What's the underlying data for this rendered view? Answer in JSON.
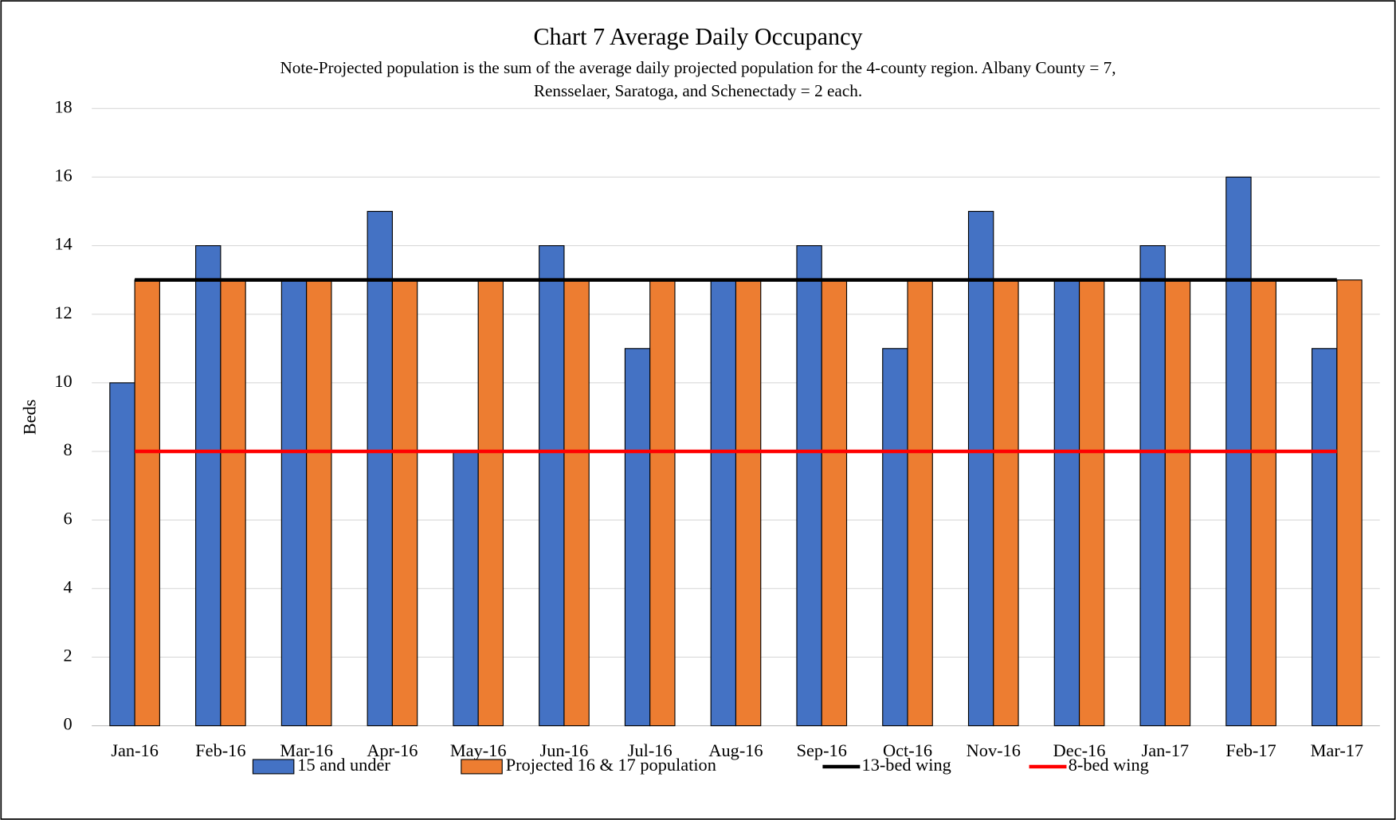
{
  "chart_data": {
    "type": "bar",
    "title": "Chart 7 Average Daily Occupancy",
    "subtitle": [
      "Note-Projected population is the sum of the average daily projected population for the 4-county region. Albany County = 7,",
      "Rensselaer, Saratoga, and Schenectady = 2 each."
    ],
    "ylabel": "Beds",
    "categories": [
      "Jan-16",
      "Feb-16",
      "Mar-16",
      "Apr-16",
      "May-16",
      "Jun-16",
      "Jul-16",
      "Aug-16",
      "Sep-16",
      "Oct-16",
      "Nov-16",
      "Dec-16",
      "Jan-17",
      "Feb-17",
      "Mar-17"
    ],
    "series": [
      {
        "name": "15 and under",
        "color": "#4472c4",
        "type": "bar",
        "values": [
          10,
          14,
          13,
          15,
          8,
          14,
          11,
          13,
          14,
          11,
          15,
          13,
          14,
          16,
          11
        ]
      },
      {
        "name": "Projected 16 & 17 population",
        "color": "#ed7d31",
        "type": "bar",
        "values": [
          13,
          13,
          13,
          13,
          13,
          13,
          13,
          13,
          13,
          13,
          13,
          13,
          13,
          13,
          13
        ]
      },
      {
        "name": "13-bed wing",
        "color": "#000000",
        "type": "line",
        "values": [
          13,
          13,
          13,
          13,
          13,
          13,
          13,
          13,
          13,
          13,
          13,
          13,
          13,
          13,
          13
        ]
      },
      {
        "name": "8-bed wing",
        "color": "#ff0000",
        "type": "line",
        "values": [
          8,
          8,
          8,
          8,
          8,
          8,
          8,
          8,
          8,
          8,
          8,
          8,
          8,
          8,
          8
        ]
      }
    ],
    "ylim": [
      0,
      18
    ],
    "yticks": [
      0,
      2,
      4,
      6,
      8,
      10,
      12,
      14,
      16,
      18
    ],
    "grid": true,
    "legend": "bottom"
  }
}
